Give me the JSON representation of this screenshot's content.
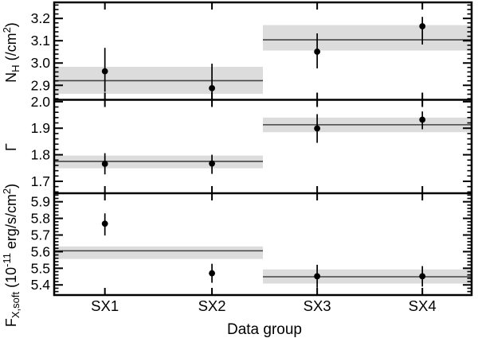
{
  "figure": {
    "xlabel": "Data group",
    "categories": [
      "SX1",
      "SX2",
      "SX3",
      "SX4"
    ],
    "colors": {
      "background": "#ffffff",
      "axis": "#000000",
      "marker": "#000000",
      "band": "#dcdcdc",
      "band_center_line": "#444444"
    },
    "style": {
      "marker_shape": "filled-circle",
      "error_bars": "vertical-no-caps",
      "grid": "off",
      "legend": "none"
    }
  },
  "chart_data": [
    {
      "id": "nh",
      "type": "scatter",
      "ylabel": "NH (/cm2)",
      "ylabel_parts": [
        {
          "t": "N"
        },
        {
          "t": "H",
          "style": "sub"
        },
        {
          "t": " (/cm"
        },
        {
          "t": "2",
          "style": "sup"
        },
        {
          "t": ")"
        }
      ],
      "ylim": [
        2.835,
        3.272
      ],
      "yticks": [
        {
          "v": 2.9,
          "label": "2.9"
        },
        {
          "v": 3.0,
          "label": "3.0"
        },
        {
          "v": 3.1,
          "label": "3.1"
        },
        {
          "v": 3.2,
          "label": "3.2"
        }
      ],
      "minor_tick_step": 0.02,
      "points": [
        {
          "group": "SX1",
          "y": 2.963,
          "lo": 2.871,
          "hi": 3.068
        },
        {
          "group": "SX2",
          "y": 2.887,
          "lo": 2.834,
          "hi": 2.997
        },
        {
          "group": "SX3",
          "y": 3.051,
          "lo": 2.976,
          "hi": 3.133
        },
        {
          "group": "SX4",
          "y": 3.165,
          "lo": 3.083,
          "hi": 3.207
        }
      ],
      "bands": [
        {
          "from": 0.0,
          "to": 0.5,
          "lo": 2.862,
          "hi": 2.983,
          "center": 2.921
        },
        {
          "from": 0.5,
          "to": 1.0,
          "lo": 3.056,
          "hi": 3.17,
          "center": 3.104
        }
      ]
    },
    {
      "id": "gamma",
      "type": "scatter",
      "ylabel": "Γ",
      "ylabel_parts": [
        {
          "t": "Γ"
        }
      ],
      "ylim": [
        1.655,
        2.007
      ],
      "yticks": [
        {
          "v": 1.7,
          "label": "1.7"
        },
        {
          "v": 1.8,
          "label": "1.8"
        },
        {
          "v": 1.9,
          "label": "1.9"
        },
        {
          "v": 2.0,
          "label": "2.0"
        }
      ],
      "minor_tick_step": 0.02,
      "points": [
        {
          "group": "SX1",
          "y": 1.766,
          "lo": 1.726,
          "hi": 1.806
        },
        {
          "group": "SX2",
          "y": 1.767,
          "lo": 1.728,
          "hi": 1.8
        },
        {
          "group": "SX3",
          "y": 1.899,
          "lo": 1.845,
          "hi": 1.953
        },
        {
          "group": "SX4",
          "y": 1.932,
          "lo": 1.896,
          "hi": 1.963
        }
      ],
      "bands": [
        {
          "from": 0.0,
          "to": 0.5,
          "lo": 1.749,
          "hi": 1.797,
          "center": 1.775
        },
        {
          "from": 0.5,
          "to": 1.0,
          "lo": 1.885,
          "hi": 1.94,
          "center": 1.913
        }
      ]
    },
    {
      "id": "fxsoft",
      "type": "scatter",
      "ylabel": "FX,soft (10-11 erg/s/cm2)",
      "ylabel_parts": [
        {
          "t": "F"
        },
        {
          "t": "X,soft",
          "style": "sub"
        },
        {
          "t": " (10"
        },
        {
          "t": "-11",
          "style": "sup"
        },
        {
          "t": " erg/s/cm"
        },
        {
          "t": "2",
          "style": "sup"
        },
        {
          "t": ")"
        }
      ],
      "ylim": [
        5.339,
        5.951
      ],
      "yticks": [
        {
          "v": 5.4,
          "label": "5.4"
        },
        {
          "v": 5.5,
          "label": "5.5"
        },
        {
          "v": 5.6,
          "label": "5.6"
        },
        {
          "v": 5.7,
          "label": "5.7"
        },
        {
          "v": 5.8,
          "label": "5.8"
        },
        {
          "v": 5.9,
          "label": "5.9"
        }
      ],
      "minor_tick_step": 0.02,
      "points": [
        {
          "group": "SX1",
          "y": 5.768,
          "lo": 5.697,
          "hi": 5.83
        },
        {
          "group": "SX2",
          "y": 5.47,
          "lo": 5.413,
          "hi": 5.527
        },
        {
          "group": "SX3",
          "y": 5.452,
          "lo": 5.383,
          "hi": 5.521
        },
        {
          "group": "SX4",
          "y": 5.452,
          "lo": 5.39,
          "hi": 5.513
        }
      ],
      "bands": [
        {
          "from": 0.0,
          "to": 0.5,
          "lo": 5.556,
          "hi": 5.631,
          "center": 5.605
        },
        {
          "from": 0.5,
          "to": 1.0,
          "lo": 5.408,
          "hi": 5.493,
          "center": 5.449
        }
      ]
    }
  ]
}
